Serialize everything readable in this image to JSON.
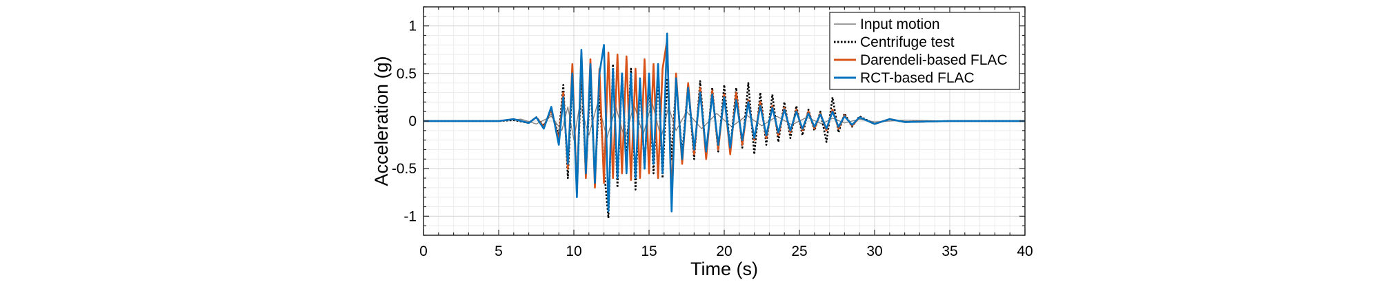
{
  "chart_data": {
    "type": "line",
    "title": "",
    "xlabel": "Time (s)",
    "ylabel": "Acceleration (g)",
    "xlim": [
      0,
      40
    ],
    "ylim": [
      -1.2,
      1.2
    ],
    "xticks": [
      0,
      5,
      10,
      15,
      20,
      25,
      30,
      35,
      40
    ],
    "yticks": [
      -1,
      -0.5,
      0,
      0.5,
      1
    ],
    "ytick_labels": [
      "-1",
      "-0.5",
      "0",
      "0.5",
      "1"
    ],
    "grid": true,
    "minor_grid": true,
    "legend_position": "top-right",
    "series": [
      {
        "name": "Input motion",
        "color": "#7f7f7f",
        "style": "solid",
        "x": [
          0,
          5,
          6.5,
          7.5,
          8.5,
          9.2,
          9.6,
          10.0,
          10.4,
          11.0,
          11.6,
          12.2,
          12.8,
          13.4,
          14.0,
          14.6,
          15.2,
          15.8,
          16.3,
          16.8,
          17.5,
          18.5,
          19.5,
          20.5,
          21.5,
          22.5,
          23.5,
          24.5,
          25.5,
          26.5,
          27.2,
          28,
          29,
          30,
          32,
          35,
          40
        ],
        "y": [
          0,
          0,
          0.02,
          -0.03,
          0.05,
          -0.1,
          0.15,
          -0.2,
          0.18,
          -0.15,
          0.2,
          -0.18,
          0.15,
          -0.2,
          0.18,
          -0.15,
          0.2,
          -0.18,
          0.15,
          -0.1,
          0.1,
          -0.08,
          0.08,
          -0.06,
          0.06,
          -0.05,
          0.05,
          -0.04,
          0.04,
          -0.03,
          0.03,
          -0.02,
          0.02,
          -0.01,
          0.01,
          0,
          0
        ]
      },
      {
        "name": "Centrifuge test",
        "color": "#000000",
        "style": "dotted",
        "x": [
          0,
          5,
          6,
          7,
          7.5,
          8,
          8.5,
          9,
          9.3,
          9.6,
          9.9,
          10.2,
          10.5,
          10.8,
          11.1,
          11.4,
          11.7,
          12.0,
          12.3,
          12.6,
          12.9,
          13.2,
          13.5,
          13.8,
          14.1,
          14.4,
          14.7,
          15.0,
          15.3,
          15.6,
          15.9,
          16.2,
          16.5,
          16.8,
          17.2,
          17.6,
          18.0,
          18.4,
          18.8,
          19.2,
          19.6,
          20.0,
          20.4,
          20.8,
          21.2,
          21.6,
          22.0,
          22.4,
          22.8,
          23.2,
          23.6,
          24.0,
          24.4,
          24.8,
          25.2,
          25.6,
          26.0,
          26.4,
          26.8,
          27.2,
          27.6,
          28.0,
          28.5,
          29.0,
          30.0,
          31.0,
          32.0,
          35.0,
          40.0
        ],
        "y": [
          0,
          0,
          0.01,
          -0.02,
          0.04,
          -0.05,
          0.1,
          -0.15,
          0.38,
          -0.6,
          0.45,
          -0.7,
          0.5,
          -0.55,
          0.45,
          -0.6,
          0.3,
          -0.5,
          -1.02,
          0.6,
          -0.7,
          0.5,
          -0.45,
          0.55,
          -0.72,
          0.4,
          -0.5,
          0.45,
          -0.55,
          0.5,
          -0.6,
          0.45,
          -0.4,
          0.42,
          -0.35,
          0.38,
          -0.4,
          0.42,
          -0.38,
          0.35,
          -0.32,
          0.38,
          -0.3,
          0.35,
          -0.28,
          0.4,
          -0.35,
          0.3,
          -0.25,
          0.28,
          -0.22,
          0.2,
          -0.18,
          0.16,
          -0.15,
          0.12,
          -0.1,
          0.1,
          -0.22,
          0.25,
          -0.12,
          0.08,
          -0.06,
          0.05,
          -0.03,
          0.02,
          -0.01,
          0,
          0
        ]
      },
      {
        "name": "Darendeli-based FLAC",
        "color": "#d95319",
        "style": "solid",
        "x": [
          0,
          5,
          6,
          7,
          7.5,
          8,
          8.5,
          9,
          9.3,
          9.6,
          9.9,
          10.2,
          10.5,
          10.8,
          11.1,
          11.4,
          11.7,
          12.0,
          12.3,
          12.6,
          12.9,
          13.2,
          13.5,
          13.8,
          14.1,
          14.4,
          14.7,
          15.0,
          15.3,
          15.6,
          15.9,
          16.2,
          16.5,
          16.8,
          17.2,
          17.6,
          18.0,
          18.4,
          18.8,
          19.2,
          19.6,
          20.0,
          20.4,
          20.8,
          21.2,
          21.6,
          22.0,
          22.4,
          22.8,
          23.2,
          23.6,
          24.0,
          24.4,
          24.8,
          25.2,
          25.6,
          26.0,
          26.4,
          26.8,
          27.2,
          27.6,
          28.0,
          28.5,
          29.0,
          30.0,
          31.0,
          32.0,
          35.0,
          40.0
        ],
        "y": [
          0,
          0,
          0.02,
          -0.02,
          0.04,
          -0.06,
          0.12,
          -0.2,
          0.3,
          -0.5,
          0.6,
          -0.75,
          0.72,
          -0.6,
          0.65,
          -0.7,
          0.55,
          -0.65,
          0.72,
          -0.6,
          0.7,
          -0.55,
          0.68,
          -0.62,
          0.55,
          -0.6,
          0.65,
          -0.55,
          0.6,
          -0.6,
          0.55,
          0.85,
          -0.8,
          0.5,
          -0.45,
          0.4,
          -0.35,
          0.35,
          -0.4,
          0.32,
          -0.3,
          0.28,
          -0.35,
          0.3,
          -0.25,
          0.22,
          -0.2,
          0.2,
          -0.18,
          0.16,
          -0.15,
          0.14,
          -0.12,
          0.12,
          -0.1,
          0.1,
          -0.08,
          0.08,
          -0.1,
          0.12,
          -0.08,
          0.06,
          -0.05,
          0.04,
          -0.03,
          0.02,
          -0.01,
          0,
          0
        ]
      },
      {
        "name": "RCT-based FLAC",
        "color": "#0072bd",
        "style": "solid",
        "x": [
          0,
          5,
          6,
          7,
          7.5,
          8,
          8.5,
          9,
          9.3,
          9.6,
          9.9,
          10.2,
          10.5,
          10.8,
          11.1,
          11.4,
          11.7,
          12.0,
          12.3,
          12.6,
          12.9,
          13.2,
          13.5,
          13.8,
          14.1,
          14.4,
          14.7,
          15.0,
          15.3,
          15.6,
          15.9,
          16.2,
          16.5,
          16.8,
          17.2,
          17.6,
          18.0,
          18.4,
          18.8,
          19.2,
          19.6,
          20.0,
          20.4,
          20.8,
          21.2,
          21.6,
          22.0,
          22.4,
          22.8,
          23.2,
          23.6,
          24.0,
          24.4,
          24.8,
          25.2,
          25.6,
          26.0,
          26.4,
          26.8,
          27.2,
          27.6,
          28.0,
          28.5,
          29.0,
          30.0,
          31.0,
          32.0,
          35.0,
          40.0
        ],
        "y": [
          0,
          0,
          0.02,
          -0.02,
          0.04,
          -0.08,
          0.15,
          -0.25,
          0.25,
          -0.45,
          0.5,
          -0.8,
          0.75,
          -0.55,
          0.6,
          -0.65,
          0.5,
          0.8,
          -0.95,
          0.55,
          -0.6,
          0.5,
          -0.55,
          0.5,
          -0.6,
          0.45,
          -0.5,
          0.5,
          -0.45,
          0.6,
          -0.55,
          0.92,
          -0.95,
          0.45,
          -0.4,
          0.35,
          -0.3,
          0.3,
          -0.32,
          0.28,
          -0.25,
          0.25,
          -0.28,
          0.22,
          -0.2,
          0.2,
          -0.18,
          0.16,
          -0.15,
          0.14,
          -0.12,
          0.12,
          -0.1,
          0.1,
          -0.08,
          0.08,
          -0.06,
          0.07,
          -0.08,
          0.1,
          -0.06,
          0.05,
          -0.04,
          0.04,
          -0.03,
          0.02,
          -0.01,
          0,
          0
        ]
      }
    ]
  }
}
